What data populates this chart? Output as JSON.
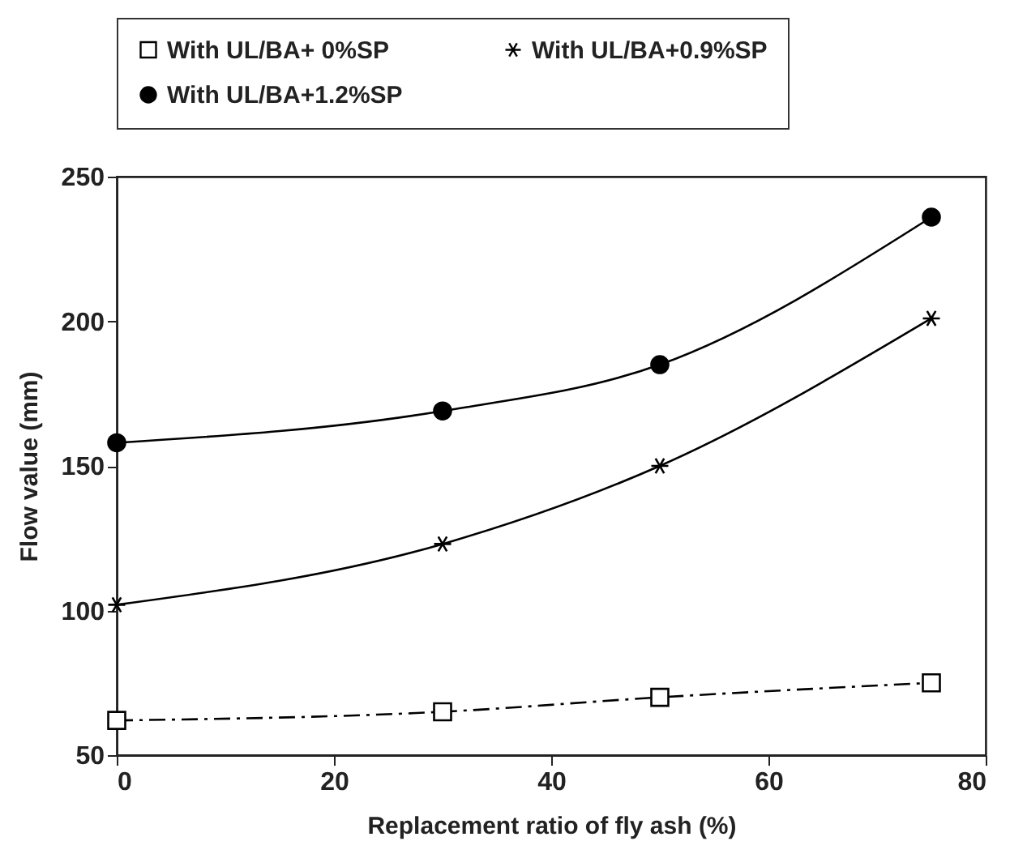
{
  "chart_data": {
    "type": "line",
    "xlabel": "Replacement ratio of fly ash (%)",
    "ylabel": "Flow value (mm)",
    "x": [
      0,
      30,
      50,
      75
    ],
    "series": [
      {
        "name": "With UL/BA+ 0%SP",
        "color": "#000000",
        "values": [
          62,
          65,
          70,
          75
        ],
        "marker": "square",
        "line_style": "dashed"
      },
      {
        "name": "With UL/BA+0.9%SP",
        "color": "#000000",
        "values": [
          102,
          123,
          150,
          201
        ],
        "marker": "cross",
        "line_style": "solid"
      },
      {
        "name": "With UL/BA+1.2%SP",
        "color": "#000000",
        "values": [
          158,
          169,
          185,
          236
        ],
        "marker": "circle",
        "line_style": "solid"
      }
    ],
    "xlim": [
      0,
      80
    ],
    "xticks": [
      0,
      20,
      40,
      60,
      80
    ],
    "ylim": [
      50,
      250
    ],
    "yticks": [
      50,
      100,
      150,
      200,
      250
    ],
    "grid": false,
    "legend": "top"
  }
}
